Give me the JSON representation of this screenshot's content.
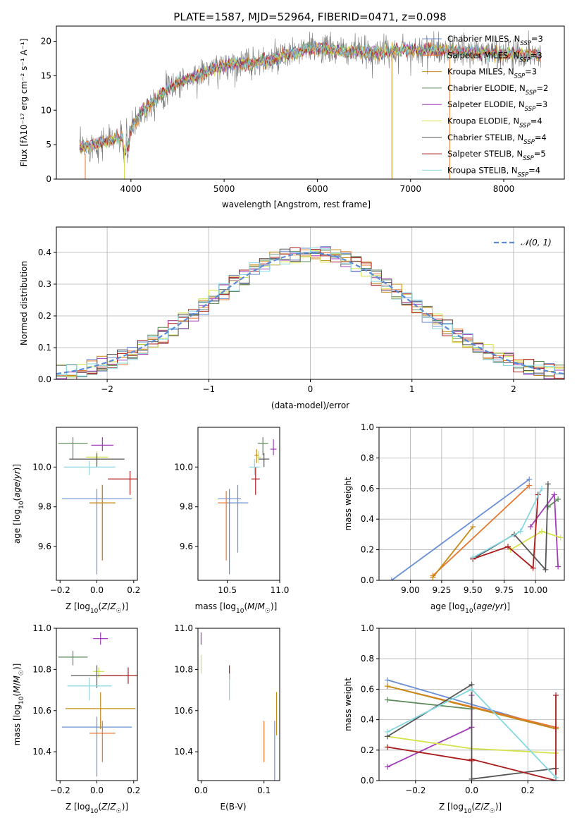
{
  "figure": {
    "title": "PLATE=1587, MJD=52964, FIBERID=0471, z=0.098"
  },
  "series_colors": [
    "#6a8fd5",
    "#e8772e",
    "#c68a16",
    "#5a8a5a",
    "#a03cb8",
    "#d4e24a",
    "#555555",
    "#aa1c1c",
    "#86d8e0"
  ],
  "chart_data": [
    {
      "id": "spectrum",
      "type": "line",
      "xlabel": "wavelength [Angstrom, rest frame]",
      "ylabel": "Flux [fλ10⁻¹⁷ erg cm⁻² s⁻¹ A⁻¹]",
      "xlim": [
        3200,
        8650
      ],
      "ylim": [
        0,
        22.2
      ],
      "xticks": [
        4000,
        5000,
        6000,
        7000,
        8000
      ],
      "yticks": [
        0,
        5,
        10,
        15,
        20
      ],
      "continuum": {
        "x": [
          3450,
          3600,
          3800,
          3950,
          4100,
          4300,
          4500,
          4800,
          5000,
          5200,
          5500,
          5800,
          6000,
          6300,
          6600,
          7000,
          7400,
          7700,
          8000,
          8400
        ],
        "y": [
          4.5,
          5.0,
          5.8,
          6.0,
          9.5,
          12.0,
          14.0,
          15.5,
          16.5,
          16.8,
          17.2,
          18.5,
          19.0,
          18.5,
          18.3,
          18.8,
          18.6,
          18.4,
          18.2,
          18.0
        ]
      },
      "legend": [
        {
          "label": "Chabrier MILES, N",
          "sub": "SSP",
          "suffix": "=3"
        },
        {
          "label": "Salpeter MILES, N",
          "sub": "SSP",
          "suffix": "=3"
        },
        {
          "label": "Kroupa MILES, N",
          "sub": "SSP",
          "suffix": "=3"
        },
        {
          "label": "Chabrier ELODIE, N",
          "sub": "SSP",
          "suffix": "=2"
        },
        {
          "label": "Salpeter ELODIE, N",
          "sub": "SSP",
          "suffix": "=3"
        },
        {
          "label": "Kroupa ELODIE, N",
          "sub": "SSP",
          "suffix": "=4"
        },
        {
          "label": "Chabrier STELIB, N",
          "sub": "SSP",
          "suffix": "=4"
        },
        {
          "label": "Salpeter STELIB, N",
          "sub": "SSP",
          "suffix": "=5"
        },
        {
          "label": "Kroupa STELIB, N",
          "sub": "SSP",
          "suffix": "=4"
        }
      ],
      "legend_position": "upper-right"
    },
    {
      "id": "residuals",
      "type": "line",
      "xlabel": "(data-model)/error",
      "ylabel": "Normed distribution",
      "xlim": [
        -2.5,
        2.5
      ],
      "ylim": [
        0,
        0.48
      ],
      "xticks": [
        -2,
        -1,
        0,
        1,
        2
      ],
      "yticks": [
        0.0,
        0.1,
        0.2,
        0.3,
        0.4
      ],
      "grid": true,
      "reference_curve": {
        "label": "𝒩(0, 1)",
        "type": "gaussian",
        "mean": 0,
        "sigma": 1,
        "style": "dashed"
      },
      "histogram": {
        "bin_width": 0.1
      },
      "legend_position": "upper-right"
    },
    {
      "id": "age_vs_Z",
      "type": "scatter",
      "xlabel": "Z [log10(Z/Z☉)]",
      "ylabel": "age  [log10(age/yr)]",
      "xlim": [
        -0.22,
        0.22
      ],
      "ylim": [
        9.43,
        10.2
      ],
      "xticks": [
        -0.2,
        0.0,
        0.2
      ],
      "yticks": [
        9.6,
        9.8,
        10.0
      ],
      "points": [
        {
          "x": 0.0,
          "y": 9.84,
          "xerr": 0.19,
          "yerr_lo": 0.38,
          "yerr_hi": 0.05
        },
        {
          "x": 0.03,
          "y": 9.82,
          "xerr": 0.07,
          "yerr_lo": 0.29,
          "yerr_hi": 0.09
        },
        {
          "x": 0.03,
          "y": 9.82,
          "xerr": 0.07,
          "yerr_lo": 0.29,
          "yerr_hi": 0.09
        },
        {
          "x": -0.13,
          "y": 10.12,
          "xerr": 0.08,
          "yerr_lo": 0.08,
          "yerr_hi": 0.03
        },
        {
          "x": 0.03,
          "y": 10.11,
          "xerr": 0.06,
          "yerr_lo": 0.03,
          "yerr_hi": 0.04
        },
        {
          "x": 0.0,
          "y": 10.05,
          "xerr": 0.06,
          "yerr_lo": 0.04,
          "yerr_hi": 0.03
        },
        {
          "x": 0.0,
          "y": 10.04,
          "xerr": 0.15,
          "yerr_lo": 0.04,
          "yerr_hi": 0.03
        },
        {
          "x": 0.18,
          "y": 9.94,
          "xerr": 0.12,
          "yerr_lo": 0.08,
          "yerr_hi": 0.04
        },
        {
          "x": -0.04,
          "y": 10.0,
          "xerr": 0.14,
          "yerr_lo": 0.04,
          "yerr_hi": 0.03
        }
      ]
    },
    {
      "id": "age_vs_mass",
      "type": "scatter",
      "xlabel": "mass [log10(M/M☉)]",
      "ylabel": "",
      "xlim": [
        10.22,
        11.0
      ],
      "ylim": [
        9.43,
        10.2
      ],
      "xticks": [
        10.5,
        11.0
      ],
      "yticks": [
        9.6,
        9.8,
        10.0
      ],
      "points": [
        {
          "x": 10.52,
          "y": 9.84,
          "xerr": 0.11,
          "yerr_lo": 0.38,
          "yerr_hi": 0.05
        },
        {
          "x": 10.49,
          "y": 9.82,
          "xerr": 0.08,
          "yerr_lo": 0.29,
          "yerr_hi": 0.06
        },
        {
          "x": 10.78,
          "y": 10.06,
          "xerr": 0.02,
          "yerr_lo": 0.04,
          "yerr_hi": 0.03
        },
        {
          "x": 10.84,
          "y": 10.12,
          "xerr": 0.05,
          "yerr_lo": 0.06,
          "yerr_hi": 0.03
        },
        {
          "x": 10.94,
          "y": 10.09,
          "xerr": 0.03,
          "yerr_lo": 0.03,
          "yerr_hi": 0.05
        },
        {
          "x": 10.8,
          "y": 10.05,
          "xerr": 0.02,
          "yerr_lo": 0.03,
          "yerr_hi": 0.03
        },
        {
          "x": 10.85,
          "y": 10.04,
          "xerr": 0.05,
          "yerr_lo": 0.04,
          "yerr_hi": 0.03
        },
        {
          "x": 10.77,
          "y": 9.94,
          "xerr": 0.04,
          "yerr_lo": 0.08,
          "yerr_hi": 0.06
        },
        {
          "x": 10.76,
          "y": 10.0,
          "xerr": 0.05,
          "yerr_lo": 0.04,
          "yerr_hi": 0.04
        },
        {
          "x": 10.6,
          "y": 9.82,
          "xerr": 0.1,
          "yerr_lo": 0.25,
          "yerr_hi": 0.09
        }
      ]
    },
    {
      "id": "weight_vs_age",
      "type": "line",
      "xlabel": "age  [log10(age/yr)]",
      "ylabel": "mass weight",
      "xlim": [
        8.75,
        10.23
      ],
      "ylim": [
        0,
        1.0
      ],
      "xticks": [
        9.0,
        9.25,
        9.5,
        9.75,
        10.0
      ],
      "yticks": [
        0.0,
        0.2,
        0.4,
        0.6,
        0.8,
        1.0
      ],
      "grid": true,
      "series": [
        {
          "x": [
            8.85,
            9.95
          ],
          "y": [
            0.0,
            0.66
          ]
        },
        {
          "x": [
            9.18,
            9.95
          ],
          "y": [
            0.03,
            0.62
          ]
        },
        {
          "x": [
            9.18,
            9.5
          ],
          "y": [
            0.02,
            0.35
          ]
        },
        {
          "x": [
            10.1,
            10.18
          ],
          "y": [
            0.48,
            0.53
          ]
        },
        {
          "x": [
            9.96,
            10.15,
            10.18
          ],
          "y": [
            0.35,
            0.56,
            0.09
          ]
        },
        {
          "x": [
            9.8,
            10.05,
            10.2
          ],
          "y": [
            0.2,
            0.32,
            0.28
          ]
        },
        {
          "x": [
            9.5,
            9.83,
            10.08,
            10.1
          ],
          "y": [
            0.14,
            0.3,
            0.07,
            0.63
          ]
        },
        {
          "x": [
            9.5,
            9.78,
            9.98,
            10.02
          ],
          "y": [
            0.14,
            0.22,
            0.08,
            0.56
          ]
        },
        {
          "x": [
            9.5,
            9.88,
            10.05
          ],
          "y": [
            0.15,
            0.32,
            0.6
          ]
        }
      ]
    },
    {
      "id": "mass_vs_Z",
      "type": "scatter",
      "xlabel": "Z [log10(Z/Z☉)]",
      "ylabel": "mass [log10(M/M☉)]",
      "xlim": [
        -0.22,
        0.22
      ],
      "ylim": [
        10.26,
        11.0
      ],
      "xticks": [
        -0.2,
        0.0,
        0.2
      ],
      "yticks": [
        10.4,
        10.6,
        10.8,
        11.0
      ],
      "points": [
        {
          "x": 0.0,
          "y": 10.52,
          "xerr": 0.19,
          "yerr_lo": 0.24,
          "yerr_hi": 0.05
        },
        {
          "x": 0.03,
          "y": 10.49,
          "xerr": 0.07,
          "yerr_lo": 0.14,
          "yerr_hi": 0.06
        },
        {
          "x": -0.13,
          "y": 10.86,
          "xerr": 0.08,
          "yerr_lo": 0.04,
          "yerr_hi": 0.03
        },
        {
          "x": 0.02,
          "y": 10.95,
          "xerr": 0.04,
          "yerr_lo": 0.03,
          "yerr_hi": 0.03
        },
        {
          "x": 0.01,
          "y": 10.79,
          "xerr": 0.03,
          "yerr_lo": 0.03,
          "yerr_hi": 0.02
        },
        {
          "x": 0.0,
          "y": 10.77,
          "xerr": 0.14,
          "yerr_lo": 0.06,
          "yerr_hi": 0.05
        },
        {
          "x": 0.17,
          "y": 10.77,
          "xerr": 0.15,
          "yerr_lo": 0.04,
          "yerr_hi": 0.04
        },
        {
          "x": -0.04,
          "y": 10.72,
          "xerr": 0.12,
          "yerr_lo": 0.07,
          "yerr_hi": 0.04
        },
        {
          "x": 0.02,
          "y": 10.61,
          "xerr": 0.19,
          "yerr_lo": 0.1,
          "yerr_hi": 0.08
        }
      ]
    },
    {
      "id": "mass_vs_ebv",
      "type": "scatter",
      "xlabel": "E(B-V)",
      "ylabel": "",
      "xlim": [
        -0.005,
        0.125
      ],
      "ylim": [
        10.26,
        11.0
      ],
      "xticks": [
        0.0,
        0.1
      ],
      "yticks": [
        10.4,
        10.6,
        10.8,
        11.0
      ],
      "points": [
        {
          "x": 0.0,
          "y": 10.95,
          "xerr": 0.0,
          "yerr_lo": 0.03,
          "yerr_hi": 0.03
        },
        {
          "x": 0.0,
          "y": 10.83,
          "xerr": 0.0,
          "yerr_lo": 0.05,
          "yerr_hi": 0.04
        },
        {
          "x": 0.045,
          "y": 10.79,
          "xerr": 0.0,
          "yerr_lo": 0.04,
          "yerr_hi": 0.03
        },
        {
          "x": 0.045,
          "y": 10.72,
          "xerr": 0.0,
          "yerr_lo": 0.07,
          "yerr_hi": 0.06
        },
        {
          "x": 0.1,
          "y": 10.45,
          "xerr": 0.0,
          "yerr_lo": 0.1,
          "yerr_hi": 0.1
        },
        {
          "x": 0.117,
          "y": 10.4,
          "xerr": 0.0,
          "yerr_lo": 0.14,
          "yerr_hi": 0.15
        },
        {
          "x": 0.12,
          "y": 10.59,
          "xerr": 0.0,
          "yerr_lo": 0.11,
          "yerr_hi": 0.1
        }
      ]
    },
    {
      "id": "weight_vs_Z",
      "type": "line",
      "xlabel": "Z [log10(Z/Z☉)]",
      "ylabel": "mass weight",
      "xlim": [
        -0.33,
        0.33
      ],
      "ylim": [
        0,
        1.0
      ],
      "xticks": [
        -0.2,
        0.0,
        0.2
      ],
      "yticks": [
        0.0,
        0.2,
        0.4,
        0.6,
        0.8,
        1.0
      ],
      "grid": true,
      "series": [
        {
          "x": [
            -0.3,
            0.3
          ],
          "y": [
            0.66,
            0.34
          ]
        },
        {
          "x": [
            -0.3,
            0.3
          ],
          "y": [
            0.62,
            0.35
          ]
        },
        {
          "x": [
            -0.3,
            0.3
          ],
          "y": [
            0.62,
            0.34
          ]
        },
        {
          "x": [
            -0.3,
            0.0
          ],
          "y": [
            0.53,
            0.47
          ]
        },
        {
          "x": [
            -0.3,
            0.0,
            0.0
          ],
          "y": [
            0.09,
            0.35,
            0.56
          ]
        },
        {
          "x": [
            -0.3,
            0.0,
            0.3
          ],
          "y": [
            0.29,
            0.21,
            0.18
          ]
        },
        {
          "x": [
            -0.3,
            0.0,
            0.0,
            0.3
          ],
          "y": [
            0.29,
            0.63,
            0.01,
            0.08
          ]
        },
        {
          "x": [
            -0.3,
            0.0,
            0.0,
            0.3,
            0.3
          ],
          "y": [
            0.22,
            0.13,
            0.14,
            0.0,
            0.56
          ]
        },
        {
          "x": [
            -0.3,
            0.0,
            0.3
          ],
          "y": [
            0.32,
            0.6,
            0.02
          ]
        }
      ]
    }
  ]
}
